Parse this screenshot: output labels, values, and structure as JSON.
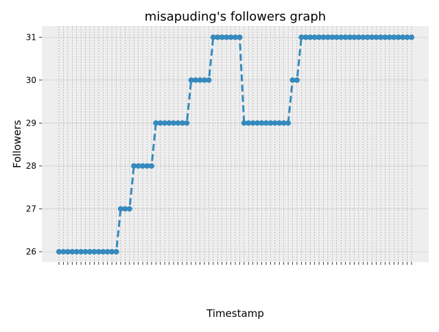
{
  "chart_data": {
    "type": "line",
    "title": "misapuding's followers graph",
    "xlabel": "Timestamp",
    "ylabel": "Followers",
    "categories": [
      null,
      null,
      null,
      null,
      null,
      null,
      null,
      null,
      null,
      null,
      null,
      null,
      null,
      null,
      null,
      null,
      null,
      null,
      null,
      null,
      null,
      null,
      null,
      null,
      null,
      null,
      null,
      null,
      null,
      null,
      null,
      null,
      null,
      null,
      null,
      null,
      null,
      null,
      null,
      null,
      null,
      null,
      null,
      null,
      null,
      null,
      null,
      null,
      null,
      null,
      null,
      null,
      null,
      null,
      null,
      null,
      null,
      null,
      null,
      null,
      null,
      null,
      null,
      null,
      null,
      null,
      null,
      null,
      null,
      null,
      null,
      null,
      null,
      null,
      null,
      null,
      null,
      null,
      null,
      null,
      null
    ],
    "series": [
      {
        "name": "Followers",
        "color": "#348ABD",
        "values": [
          26,
          26,
          26,
          26,
          26,
          26,
          26,
          26,
          26,
          26,
          26,
          26,
          26,
          26,
          27,
          27,
          27,
          28,
          28,
          28,
          28,
          28,
          29,
          29,
          29,
          29,
          29,
          29,
          29,
          29,
          30,
          30,
          30,
          30,
          30,
          31,
          31,
          31,
          31,
          31,
          31,
          31,
          29,
          29,
          29,
          29,
          29,
          29,
          29,
          29,
          29,
          29,
          29,
          30,
          30,
          31,
          31,
          31,
          31,
          31,
          31,
          31,
          31,
          31,
          31,
          31,
          31,
          31,
          31,
          31,
          31,
          31,
          31,
          31,
          31,
          31,
          31,
          31,
          31,
          31,
          31
        ]
      }
    ],
    "ylim": [
      25.76,
      31.26
    ],
    "yticks": [
      26,
      27,
      28,
      29,
      30,
      31
    ],
    "grid": true
  }
}
